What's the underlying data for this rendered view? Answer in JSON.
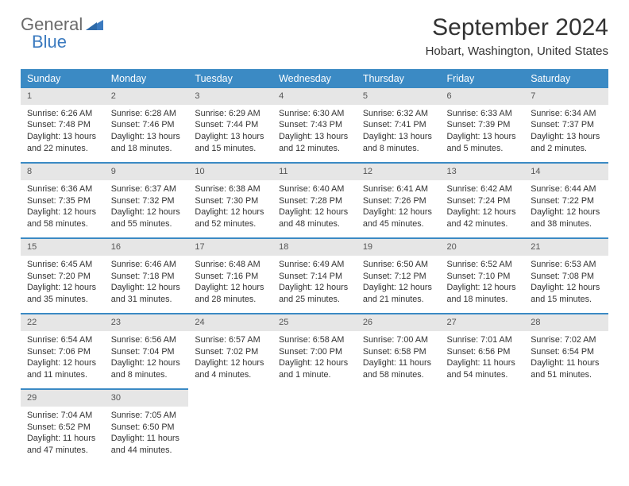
{
  "logo": {
    "general": "General",
    "blue": "Blue",
    "triangle_color": "#3b7abf"
  },
  "colors": {
    "header_bg": "#3b8ac4",
    "header_text": "#ffffff",
    "daynum_bg": "#e6e6e6",
    "rule": "#3b8ac4"
  },
  "title": "September 2024",
  "location": "Hobart, Washington, United States",
  "weekdays": [
    "Sunday",
    "Monday",
    "Tuesday",
    "Wednesday",
    "Thursday",
    "Friday",
    "Saturday"
  ],
  "weeks": [
    [
      {
        "n": "1",
        "sunrise": "6:26 AM",
        "sunset": "7:48 PM",
        "dl1": "Daylight: 13 hours",
        "dl2": "and 22 minutes."
      },
      {
        "n": "2",
        "sunrise": "6:28 AM",
        "sunset": "7:46 PM",
        "dl1": "Daylight: 13 hours",
        "dl2": "and 18 minutes."
      },
      {
        "n": "3",
        "sunrise": "6:29 AM",
        "sunset": "7:44 PM",
        "dl1": "Daylight: 13 hours",
        "dl2": "and 15 minutes."
      },
      {
        "n": "4",
        "sunrise": "6:30 AM",
        "sunset": "7:43 PM",
        "dl1": "Daylight: 13 hours",
        "dl2": "and 12 minutes."
      },
      {
        "n": "5",
        "sunrise": "6:32 AM",
        "sunset": "7:41 PM",
        "dl1": "Daylight: 13 hours",
        "dl2": "and 8 minutes."
      },
      {
        "n": "6",
        "sunrise": "6:33 AM",
        "sunset": "7:39 PM",
        "dl1": "Daylight: 13 hours",
        "dl2": "and 5 minutes."
      },
      {
        "n": "7",
        "sunrise": "6:34 AM",
        "sunset": "7:37 PM",
        "dl1": "Daylight: 13 hours",
        "dl2": "and 2 minutes."
      }
    ],
    [
      {
        "n": "8",
        "sunrise": "6:36 AM",
        "sunset": "7:35 PM",
        "dl1": "Daylight: 12 hours",
        "dl2": "and 58 minutes."
      },
      {
        "n": "9",
        "sunrise": "6:37 AM",
        "sunset": "7:32 PM",
        "dl1": "Daylight: 12 hours",
        "dl2": "and 55 minutes."
      },
      {
        "n": "10",
        "sunrise": "6:38 AM",
        "sunset": "7:30 PM",
        "dl1": "Daylight: 12 hours",
        "dl2": "and 52 minutes."
      },
      {
        "n": "11",
        "sunrise": "6:40 AM",
        "sunset": "7:28 PM",
        "dl1": "Daylight: 12 hours",
        "dl2": "and 48 minutes."
      },
      {
        "n": "12",
        "sunrise": "6:41 AM",
        "sunset": "7:26 PM",
        "dl1": "Daylight: 12 hours",
        "dl2": "and 45 minutes."
      },
      {
        "n": "13",
        "sunrise": "6:42 AM",
        "sunset": "7:24 PM",
        "dl1": "Daylight: 12 hours",
        "dl2": "and 42 minutes."
      },
      {
        "n": "14",
        "sunrise": "6:44 AM",
        "sunset": "7:22 PM",
        "dl1": "Daylight: 12 hours",
        "dl2": "and 38 minutes."
      }
    ],
    [
      {
        "n": "15",
        "sunrise": "6:45 AM",
        "sunset": "7:20 PM",
        "dl1": "Daylight: 12 hours",
        "dl2": "and 35 minutes."
      },
      {
        "n": "16",
        "sunrise": "6:46 AM",
        "sunset": "7:18 PM",
        "dl1": "Daylight: 12 hours",
        "dl2": "and 31 minutes."
      },
      {
        "n": "17",
        "sunrise": "6:48 AM",
        "sunset": "7:16 PM",
        "dl1": "Daylight: 12 hours",
        "dl2": "and 28 minutes."
      },
      {
        "n": "18",
        "sunrise": "6:49 AM",
        "sunset": "7:14 PM",
        "dl1": "Daylight: 12 hours",
        "dl2": "and 25 minutes."
      },
      {
        "n": "19",
        "sunrise": "6:50 AM",
        "sunset": "7:12 PM",
        "dl1": "Daylight: 12 hours",
        "dl2": "and 21 minutes."
      },
      {
        "n": "20",
        "sunrise": "6:52 AM",
        "sunset": "7:10 PM",
        "dl1": "Daylight: 12 hours",
        "dl2": "and 18 minutes."
      },
      {
        "n": "21",
        "sunrise": "6:53 AM",
        "sunset": "7:08 PM",
        "dl1": "Daylight: 12 hours",
        "dl2": "and 15 minutes."
      }
    ],
    [
      {
        "n": "22",
        "sunrise": "6:54 AM",
        "sunset": "7:06 PM",
        "dl1": "Daylight: 12 hours",
        "dl2": "and 11 minutes."
      },
      {
        "n": "23",
        "sunrise": "6:56 AM",
        "sunset": "7:04 PM",
        "dl1": "Daylight: 12 hours",
        "dl2": "and 8 minutes."
      },
      {
        "n": "24",
        "sunrise": "6:57 AM",
        "sunset": "7:02 PM",
        "dl1": "Daylight: 12 hours",
        "dl2": "and 4 minutes."
      },
      {
        "n": "25",
        "sunrise": "6:58 AM",
        "sunset": "7:00 PM",
        "dl1": "Daylight: 12 hours",
        "dl2": "and 1 minute."
      },
      {
        "n": "26",
        "sunrise": "7:00 AM",
        "sunset": "6:58 PM",
        "dl1": "Daylight: 11 hours",
        "dl2": "and 58 minutes."
      },
      {
        "n": "27",
        "sunrise": "7:01 AM",
        "sunset": "6:56 PM",
        "dl1": "Daylight: 11 hours",
        "dl2": "and 54 minutes."
      },
      {
        "n": "28",
        "sunrise": "7:02 AM",
        "sunset": "6:54 PM",
        "dl1": "Daylight: 11 hours",
        "dl2": "and 51 minutes."
      }
    ],
    [
      {
        "n": "29",
        "sunrise": "7:04 AM",
        "sunset": "6:52 PM",
        "dl1": "Daylight: 11 hours",
        "dl2": "and 47 minutes."
      },
      {
        "n": "30",
        "sunrise": "7:05 AM",
        "sunset": "6:50 PM",
        "dl1": "Daylight: 11 hours",
        "dl2": "and 44 minutes."
      },
      {
        "empty": true
      },
      {
        "empty": true
      },
      {
        "empty": true
      },
      {
        "empty": true
      },
      {
        "empty": true
      }
    ]
  ]
}
